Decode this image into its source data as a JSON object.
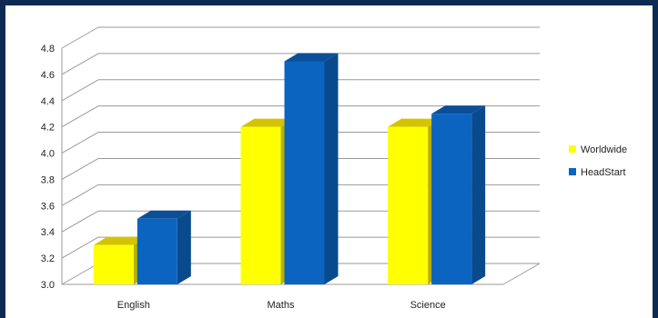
{
  "chart_data": {
    "type": "bar",
    "style": "3d-clustered-column",
    "categories": [
      "English",
      "Maths",
      "Science"
    ],
    "series": [
      {
        "name": "Worldwide",
        "values": [
          3.3,
          4.2,
          4.2
        ],
        "color": "#ffff00",
        "top_color": "#d4c400"
      },
      {
        "name": "HeadStart",
        "values": [
          3.5,
          4.7,
          4.3
        ],
        "color": "#0a64c0",
        "side_color": "#084a8c",
        "top_color": "#0b4f98"
      }
    ],
    "title": "",
    "xlabel": "",
    "ylabel": "",
    "ylim": [
      3.0,
      4.8
    ],
    "yticks": [
      "3.0",
      "3.2",
      "3.4",
      "3.6",
      "3.8",
      "4.0",
      "4.2",
      "4.4",
      "4.6",
      "4.8"
    ],
    "grid": true,
    "legend_position": "right"
  },
  "colors": {
    "outer_background": "#0d2a52",
    "chart_background": "#ffffff",
    "gridline": "#9a9a9a"
  }
}
